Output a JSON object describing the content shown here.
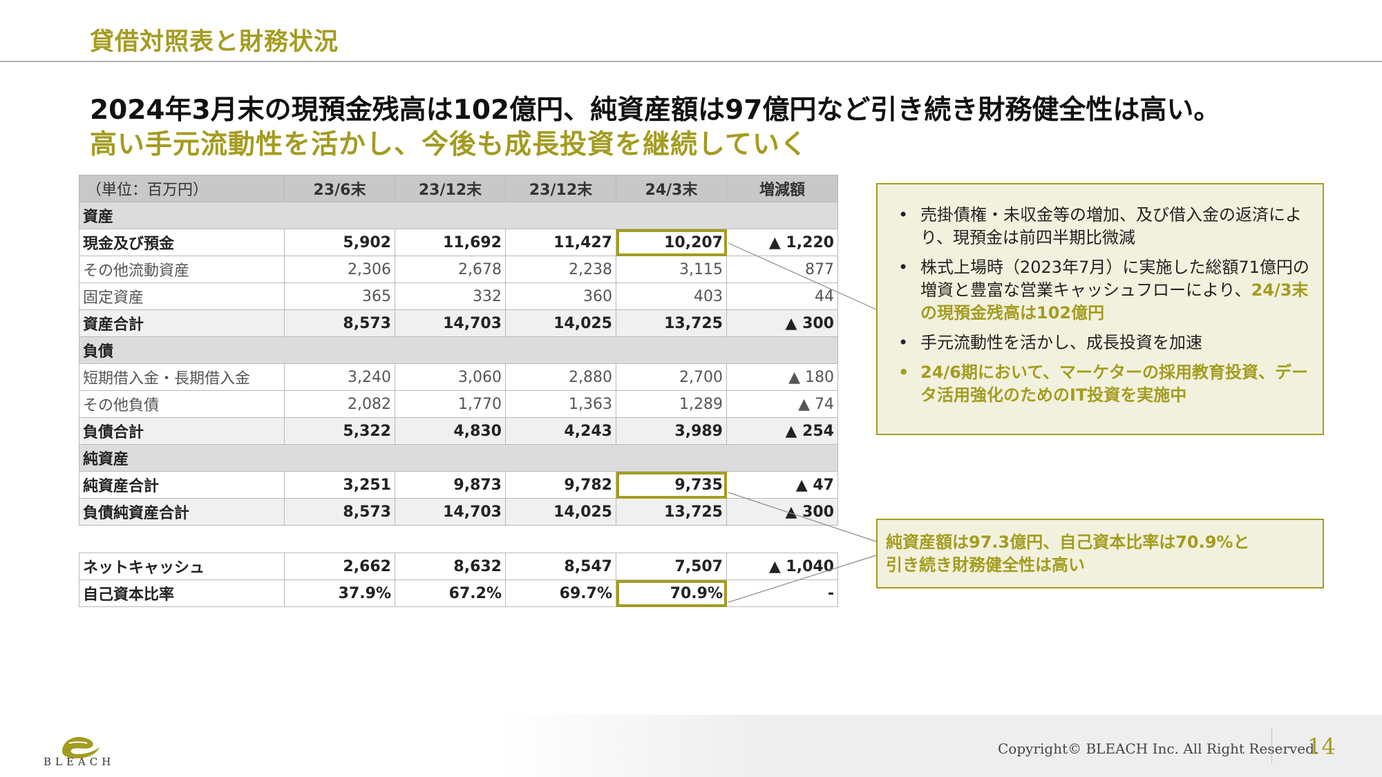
{
  "header": {
    "title": "貸借対照表と財務状況"
  },
  "headline": {
    "line1": "2024年3月末の現預金残高は102億円、純資産額は97億円など引き続き財務健全性は高い。",
    "line2": "高い手元流動性を活かし、今後も成長投資を継続していく"
  },
  "table": {
    "unit_label": "（単位：百万円）",
    "columns": [
      "23/6末",
      "23/12末",
      "23/12末",
      "24/3末",
      "増減額"
    ],
    "rows": [
      {
        "type": "section",
        "label": "資産"
      },
      {
        "type": "bold",
        "label": "現金及び預金",
        "values": [
          "5,902",
          "11,692",
          "11,427",
          "10,207",
          "▲ 1,220"
        ]
      },
      {
        "type": "thin",
        "label": "その他流動資産",
        "values": [
          "2,306",
          "2,678",
          "2,238",
          "3,115",
          "877"
        ]
      },
      {
        "type": "thin",
        "label": "固定資産",
        "values": [
          "365",
          "332",
          "360",
          "403",
          "44"
        ]
      },
      {
        "type": "total",
        "label": "資産合計",
        "values": [
          "8,573",
          "14,703",
          "14,025",
          "13,725",
          "▲ 300"
        ]
      },
      {
        "type": "section",
        "label": "負債"
      },
      {
        "type": "thin",
        "label": "短期借入金・長期借入金",
        "values": [
          "3,240",
          "3,060",
          "2,880",
          "2,700",
          "▲ 180"
        ]
      },
      {
        "type": "thin",
        "label": "その他負債",
        "values": [
          "2,082",
          "1,770",
          "1,363",
          "1,289",
          "▲ 74"
        ]
      },
      {
        "type": "total",
        "label": "負債合計",
        "values": [
          "5,322",
          "4,830",
          "4,243",
          "3,989",
          "▲ 254"
        ]
      },
      {
        "type": "section",
        "label": "純資産"
      },
      {
        "type": "bold",
        "label": "純資産合計",
        "values": [
          "3,251",
          "9,873",
          "9,782",
          "9,735",
          "▲ 47"
        ]
      },
      {
        "type": "total",
        "label": "負債純資産合計",
        "values": [
          "8,573",
          "14,703",
          "14,025",
          "13,725",
          "▲ 300"
        ]
      },
      {
        "type": "spacer"
      },
      {
        "type": "bold",
        "label": "ネットキャッシュ",
        "values": [
          "2,662",
          "8,632",
          "8,547",
          "7,507",
          "▲ 1,040"
        ]
      },
      {
        "type": "bold",
        "label": "自己資本比率",
        "values": [
          "37.9%",
          "67.2%",
          "69.7%",
          "70.9%",
          "-"
        ]
      }
    ]
  },
  "callout_main": {
    "bullet1": "売掛債権・未収金等の増加、及び借入金の返済により、現預金は前四半期比微減",
    "bullet2_plain": "株式上場時（2023年7月）に実施した総額71億円の増資と豊富な営業キャッシュフローにより、",
    "bullet2_gold": "24/3末の現預金残高は102億円",
    "bullet3": "手元流動性を活かし、成長投資を加速",
    "bullet4": "24/6期において、マーケターの採用教育投資、データ活用強化のためのIT投資を実施中"
  },
  "callout_equity": {
    "line1": "純資産額は97.3億円、自己資本比率は70.9%と",
    "line2": "引き続き財務健全性は高い"
  },
  "footer": {
    "copyright": "Copyright© BLEACH Inc. All Right Reserved.",
    "page_number": "14",
    "logo_text": "BLEACH"
  },
  "colors": {
    "accent": "#a39c20",
    "header_fill": "#c8c8c8",
    "callout_fill": "#f2f1dd"
  }
}
